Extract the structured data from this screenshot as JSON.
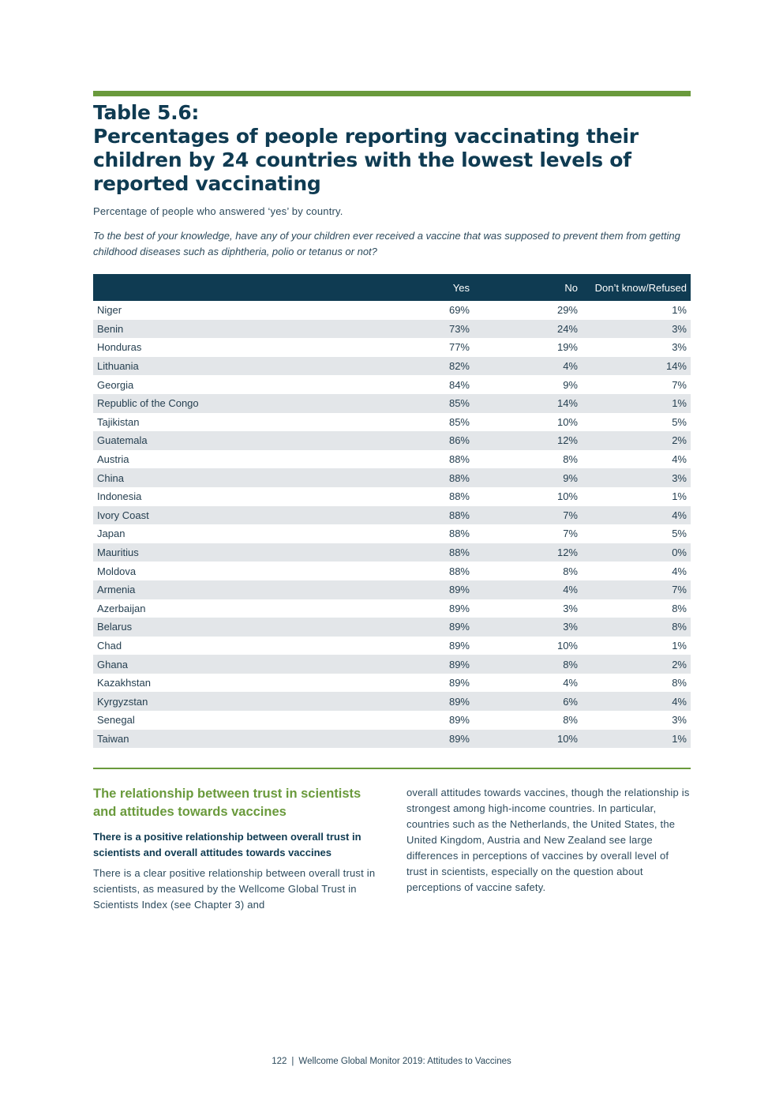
{
  "title": {
    "label": "Table 5.6:",
    "main": "Percentages of people reporting vaccinating their children by 24 countries with the lowest levels of reported vaccinating"
  },
  "subtitle": "Percentage of people who answered ‘yes’ by country.",
  "question": "To the best of your knowledge, have any of your children ever received a vaccine that was supposed to prevent them from getting childhood diseases such as diphtheria, polio or tetanus or not?",
  "table": {
    "headers": [
      "",
      "Yes",
      "No",
      "Don’t know/Refused"
    ],
    "rows": [
      [
        "Niger",
        "69%",
        "29%",
        "1%"
      ],
      [
        "Benin",
        "73%",
        "24%",
        "3%"
      ],
      [
        "Honduras",
        "77%",
        "19%",
        "3%"
      ],
      [
        "Lithuania",
        "82%",
        "4%",
        "14%"
      ],
      [
        "Georgia",
        "84%",
        "9%",
        "7%"
      ],
      [
        "Republic of the Congo",
        "85%",
        "14%",
        "1%"
      ],
      [
        "Tajikistan",
        "85%",
        "10%",
        "5%"
      ],
      [
        "Guatemala",
        "86%",
        "12%",
        "2%"
      ],
      [
        "Austria",
        "88%",
        "8%",
        "4%"
      ],
      [
        "China",
        "88%",
        "9%",
        "3%"
      ],
      [
        "Indonesia",
        "88%",
        "10%",
        "1%"
      ],
      [
        "Ivory Coast",
        "88%",
        "7%",
        "4%"
      ],
      [
        "Japan",
        "88%",
        "7%",
        "5%"
      ],
      [
        "Mauritius",
        "88%",
        "12%",
        "0%"
      ],
      [
        "Moldova",
        "88%",
        "8%",
        "4%"
      ],
      [
        "Armenia",
        "89%",
        "4%",
        "7%"
      ],
      [
        "Azerbaijan",
        "89%",
        "3%",
        "8%"
      ],
      [
        "Belarus",
        "89%",
        "3%",
        "8%"
      ],
      [
        "Chad",
        "89%",
        "10%",
        "1%"
      ],
      [
        "Ghana",
        "89%",
        "8%",
        "2%"
      ],
      [
        "Kazakhstan",
        "89%",
        "4%",
        "8%"
      ],
      [
        "Kyrgyzstan",
        "89%",
        "6%",
        "4%"
      ],
      [
        "Senegal",
        "89%",
        "8%",
        "3%"
      ],
      [
        "Taiwan",
        "89%",
        "10%",
        "1%"
      ]
    ]
  },
  "section": {
    "heading": "The relationship between trust in scientists and attitudes towards vaccines",
    "lead": "There is a positive relationship between overall trust in scientists and overall attitudes towards vaccines",
    "body_left": "There is a clear positive relationship between overall trust in scientists, as measured by the Wellcome Global Trust in Scientists Index (see Chapter 3) and",
    "body_right": "overall attitudes towards vaccines, though the relationship is strongest among high-income countries. In particular, countries such as the Netherlands, the United States, the United Kingdom, Austria and New Zealand see large differences in perceptions of vaccines by overall level of trust in scientists, especially on the question about perceptions of vaccine safety."
  },
  "footer": {
    "page_number": "122",
    "separator": "|",
    "publication": "Wellcome Global Monitor 2019: Attitudes to Vaccines"
  },
  "colors": {
    "accent_green": "#6a9a3c",
    "header_navy": "#0f3b52",
    "stripe_grey": "#e3e6e9"
  }
}
